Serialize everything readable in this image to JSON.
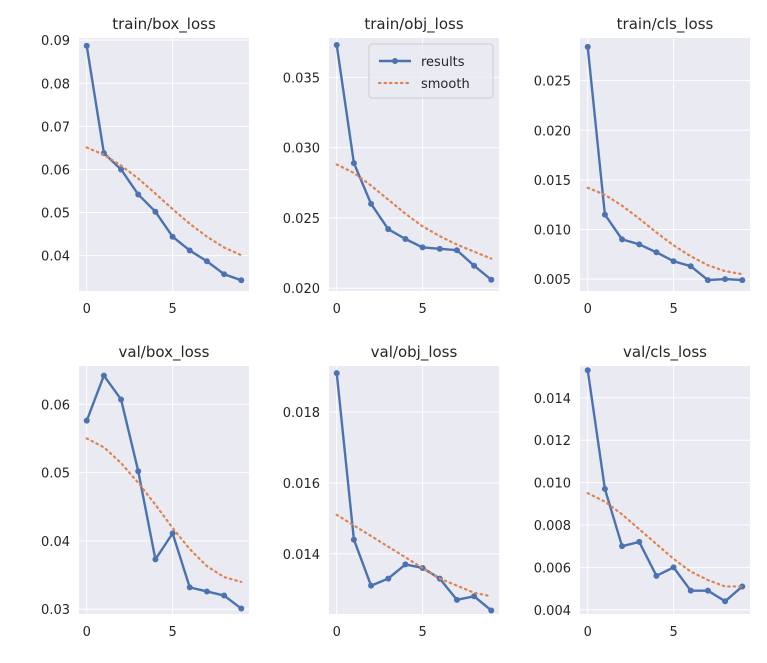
{
  "chart_data": [
    {
      "type": "line",
      "title": "train/box_loss",
      "xlabel": "",
      "ylabel": "",
      "xlim": [
        -0.45,
        9.45
      ],
      "ylim": [
        0.0318,
        0.0905
      ],
      "xticks": [
        0,
        5
      ],
      "yticks": [
        0.04,
        0.05,
        0.06,
        0.07,
        0.08,
        0.09
      ],
      "ytick_labels": [
        "0.04",
        "0.05",
        "0.06",
        "0.07",
        "0.08",
        "0.09"
      ],
      "grid": true,
      "x": [
        0,
        1,
        2,
        3,
        4,
        5,
        6,
        7,
        8,
        9
      ],
      "series": [
        {
          "name": "results",
          "style": "line-marker",
          "color": "#4c72b0",
          "values": [
            0.0887,
            0.0638,
            0.06,
            0.0542,
            0.0502,
            0.0444,
            0.0412,
            0.0387,
            0.0357,
            0.0343
          ]
        },
        {
          "name": "smooth",
          "style": "dotted",
          "color": "#dd8452",
          "values": [
            0.0651,
            0.0634,
            0.0609,
            0.0579,
            0.0544,
            0.0508,
            0.0474,
            0.0444,
            0.0419,
            0.0401
          ]
        }
      ],
      "show_legend": false
    },
    {
      "type": "line",
      "title": "train/obj_loss",
      "xlabel": "",
      "ylabel": "",
      "xlim": [
        -0.45,
        9.45
      ],
      "ylim": [
        0.0198,
        0.0378
      ],
      "xticks": [
        0,
        5
      ],
      "yticks": [
        0.02,
        0.025,
        0.03,
        0.035
      ],
      "ytick_labels": [
        "0.020",
        "0.025",
        "0.030",
        "0.035"
      ],
      "grid": true,
      "x": [
        0,
        1,
        2,
        3,
        4,
        5,
        6,
        7,
        8,
        9
      ],
      "series": [
        {
          "name": "results",
          "style": "line-marker",
          "color": "#4c72b0",
          "values": [
            0.0373,
            0.0289,
            0.026,
            0.0242,
            0.0235,
            0.0229,
            0.0228,
            0.0227,
            0.0216,
            0.0206
          ]
        },
        {
          "name": "smooth",
          "style": "dotted",
          "color": "#dd8452",
          "values": [
            0.0288,
            0.0282,
            0.0273,
            0.0263,
            0.0253,
            0.0244,
            0.0237,
            0.0231,
            0.0226,
            0.0221
          ]
        }
      ],
      "show_legend": true,
      "legend_position": "top-right"
    },
    {
      "type": "line",
      "title": "train/cls_loss",
      "xlabel": "",
      "ylabel": "",
      "xlim": [
        -0.45,
        9.45
      ],
      "ylim": [
        0.0038,
        0.0293
      ],
      "xticks": [
        0,
        5
      ],
      "yticks": [
        0.005,
        0.01,
        0.015,
        0.02,
        0.025
      ],
      "ytick_labels": [
        "0.005",
        "0.010",
        "0.015",
        "0.020",
        "0.025"
      ],
      "grid": true,
      "x": [
        0,
        1,
        2,
        3,
        4,
        5,
        6,
        7,
        8,
        9
      ],
      "series": [
        {
          "name": "results",
          "style": "line-marker",
          "color": "#4c72b0",
          "values": [
            0.0284,
            0.0115,
            0.009,
            0.0085,
            0.0077,
            0.0068,
            0.0063,
            0.0049,
            0.005,
            0.0049
          ]
        },
        {
          "name": "smooth",
          "style": "dotted",
          "color": "#dd8452",
          "values": [
            0.0142,
            0.0135,
            0.0124,
            0.0111,
            0.0097,
            0.0084,
            0.0073,
            0.0064,
            0.0058,
            0.0055
          ]
        }
      ],
      "show_legend": false
    },
    {
      "type": "line",
      "title": "val/box_loss",
      "xlabel": "",
      "ylabel": "",
      "xlim": [
        -0.45,
        9.45
      ],
      "ylim": [
        0.0293,
        0.0656
      ],
      "xticks": [
        0,
        5
      ],
      "yticks": [
        0.03,
        0.04,
        0.05,
        0.06
      ],
      "ytick_labels": [
        "0.03",
        "0.04",
        "0.05",
        "0.06"
      ],
      "grid": true,
      "x": [
        0,
        1,
        2,
        3,
        4,
        5,
        6,
        7,
        8,
        9
      ],
      "series": [
        {
          "name": "results",
          "style": "line-marker",
          "color": "#4c72b0",
          "values": [
            0.0576,
            0.0642,
            0.0607,
            0.0502,
            0.0373,
            0.0411,
            0.0332,
            0.0326,
            0.032,
            0.0301
          ]
        },
        {
          "name": "smooth",
          "style": "dotted",
          "color": "#dd8452",
          "values": [
            0.055,
            0.0537,
            0.0514,
            0.0485,
            0.0453,
            0.0419,
            0.0388,
            0.0363,
            0.0347,
            0.034
          ]
        }
      ],
      "show_legend": false
    },
    {
      "type": "line",
      "title": "val/obj_loss",
      "xlabel": "",
      "ylabel": "",
      "xlim": [
        -0.45,
        9.45
      ],
      "ylim": [
        0.0123,
        0.0193
      ],
      "xticks": [
        0,
        5
      ],
      "yticks": [
        0.014,
        0.016,
        0.018
      ],
      "ytick_labels": [
        "0.014",
        "0.016",
        "0.018"
      ],
      "grid": true,
      "x": [
        0,
        1,
        2,
        3,
        4,
        5,
        6,
        7,
        8,
        9
      ],
      "series": [
        {
          "name": "results",
          "style": "line-marker",
          "color": "#4c72b0",
          "values": [
            0.0191,
            0.0144,
            0.0131,
            0.0133,
            0.0137,
            0.0136,
            0.0133,
            0.0127,
            0.0128,
            0.0124
          ]
        },
        {
          "name": "smooth",
          "style": "dotted",
          "color": "#dd8452",
          "values": [
            0.0151,
            0.0148,
            0.0145,
            0.0142,
            0.0139,
            0.0136,
            0.0133,
            0.0131,
            0.0129,
            0.0128
          ]
        }
      ],
      "show_legend": false
    },
    {
      "type": "line",
      "title": "val/cls_loss",
      "xlabel": "",
      "ylabel": "",
      "xlim": [
        -0.45,
        9.45
      ],
      "ylim": [
        0.0038,
        0.0155
      ],
      "xticks": [
        0,
        5
      ],
      "yticks": [
        0.004,
        0.006,
        0.008,
        0.01,
        0.012,
        0.014
      ],
      "ytick_labels": [
        "0.004",
        "0.006",
        "0.008",
        "0.010",
        "0.012",
        "0.014"
      ],
      "grid": true,
      "x": [
        0,
        1,
        2,
        3,
        4,
        5,
        6,
        7,
        8,
        9
      ],
      "series": [
        {
          "name": "results",
          "style": "line-marker",
          "color": "#4c72b0",
          "values": [
            0.0153,
            0.0097,
            0.007,
            0.0072,
            0.0056,
            0.006,
            0.0049,
            0.0049,
            0.0044,
            0.0051
          ]
        },
        {
          "name": "smooth",
          "style": "dotted",
          "color": "#dd8452",
          "values": [
            0.0095,
            0.0091,
            0.0085,
            0.0078,
            0.0071,
            0.0064,
            0.0058,
            0.0054,
            0.0051,
            0.0051
          ]
        }
      ],
      "show_legend": false
    }
  ],
  "legend": {
    "entries": [
      {
        "label": "results",
        "color": "#4c72b0",
        "style": "line-marker"
      },
      {
        "label": "smooth",
        "color": "#dd8452",
        "style": "dotted"
      }
    ]
  },
  "colors": {
    "plot_background": "#eaeaf2",
    "grid": "#ffffff",
    "text": "#262626"
  }
}
